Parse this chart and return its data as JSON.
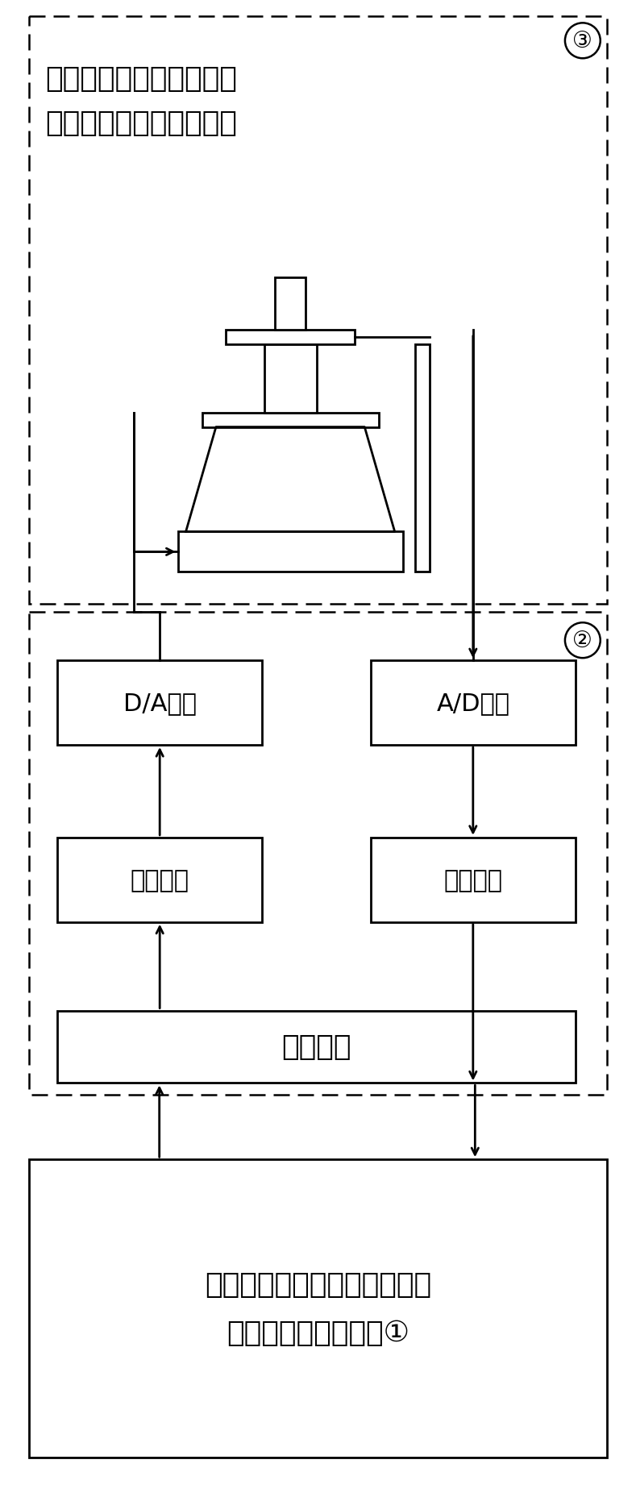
{
  "fig_width": 7.89,
  "fig_height": 18.58,
  "bg_color": "#ffffff",
  "line_color": "#000000",
  "top_text_line1": "激振装置，功率放大器，",
  "top_text_line2": "传感器，夹具，试验件等",
  "label3": "③",
  "label2": "②",
  "box_da_label": "D/A转换",
  "box_ad_label": "A/D转换",
  "box_out_label": "输出模块",
  "box_in_label": "输入模块",
  "box_ctrl_label": "控制模块",
  "box_main_line1": "多输入多输出连续正弦扫频振",
  "box_main_line2": "动试验数字控制系统①"
}
